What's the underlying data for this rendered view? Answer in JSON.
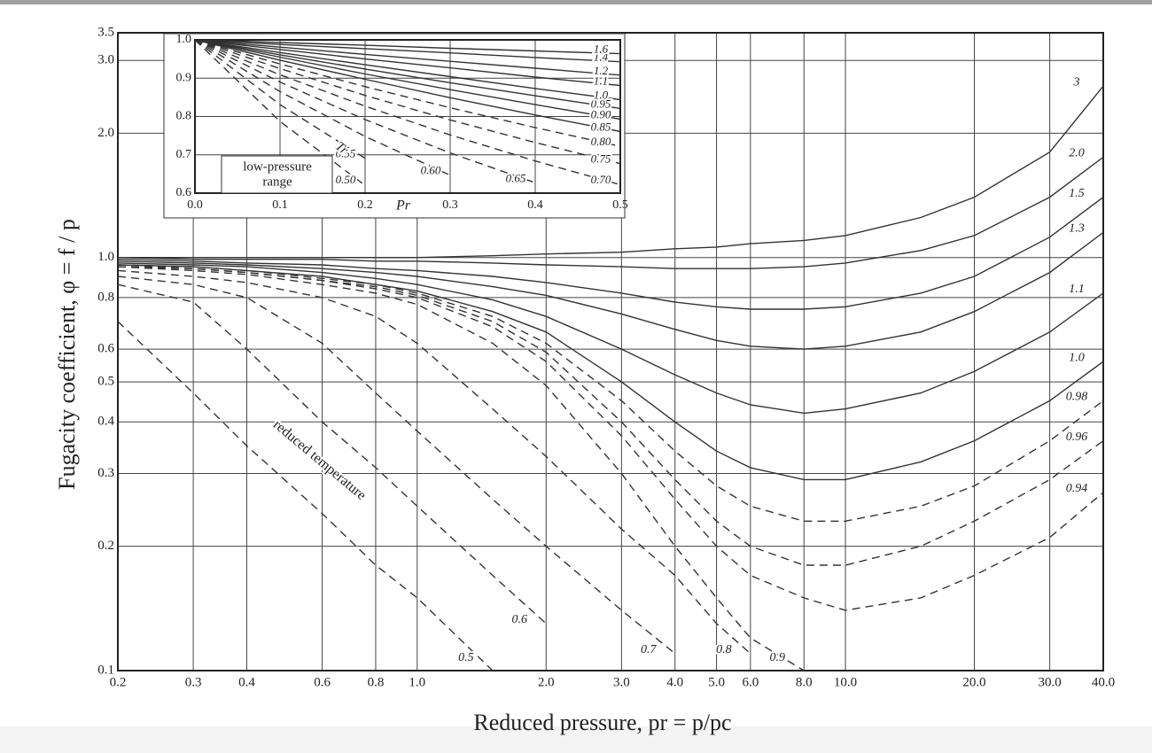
{
  "chart_data": [
    {
      "type": "line",
      "y_label": "Fugacity coefficient, φ = f / p",
      "x_label": "Reduced pressure, pr = p/pc",
      "annotation": "reduced temperature",
      "xscale": "log",
      "yscale": "log",
      "grid": true,
      "xlim": [
        0.2,
        40
      ],
      "ylim": [
        0.1,
        3.5
      ],
      "xticks": [
        0.2,
        0.3,
        0.4,
        0.6,
        0.8,
        {
          "value": 1,
          "label": "1.0"
        },
        {
          "value": 2,
          "label": "2.0"
        },
        {
          "value": 3,
          "label": "3.0"
        },
        {
          "value": 4,
          "label": "4.0"
        },
        {
          "value": 5,
          "label": "5.0"
        },
        {
          "value": 6,
          "label": "6.0"
        },
        {
          "value": 8,
          "label": "8.0"
        },
        {
          "value": 10,
          "label": "10.0"
        },
        {
          "value": 20,
          "label": "20.0"
        },
        {
          "value": 30,
          "label": "30.0"
        },
        {
          "value": 40,
          "label": "40.0"
        }
      ],
      "yticks": [
        0.1,
        0.2,
        0.3,
        0.4,
        0.5,
        0.6,
        0.8,
        {
          "value": 1,
          "label": "1.0"
        },
        {
          "value": 2,
          "label": "2.0"
        },
        {
          "value": 3,
          "label": "3.0"
        },
        3.5
      ],
      "x": [
        0.2,
        0.3,
        0.4,
        0.6,
        0.8,
        1,
        1.5,
        2,
        3,
        4,
        5,
        6,
        8,
        10,
        15,
        20,
        30,
        40
      ],
      "series": [
        {
          "name": "3",
          "color": "#333333",
          "line_style": "solid",
          "values": [
            1.0,
            1.0,
            1.0,
            1.0,
            1.0,
            1.0,
            1.01,
            1.02,
            1.03,
            1.05,
            1.06,
            1.08,
            1.1,
            1.13,
            1.25,
            1.4,
            1.8,
            2.6
          ]
        },
        {
          "name": "2.0",
          "color": "#333333",
          "line_style": "solid",
          "values": [
            1.0,
            0.99,
            0.99,
            0.99,
            0.98,
            0.98,
            0.97,
            0.96,
            0.95,
            0.94,
            0.94,
            0.94,
            0.95,
            0.97,
            1.04,
            1.13,
            1.4,
            1.75
          ]
        },
        {
          "name": "1.5",
          "color": "#333333",
          "line_style": "solid",
          "values": [
            0.99,
            0.98,
            0.97,
            0.96,
            0.94,
            0.93,
            0.9,
            0.87,
            0.82,
            0.78,
            0.76,
            0.75,
            0.75,
            0.76,
            0.82,
            0.9,
            1.12,
            1.4
          ]
        },
        {
          "name": "1.3",
          "color": "#333333",
          "line_style": "solid",
          "values": [
            0.98,
            0.97,
            0.96,
            0.94,
            0.92,
            0.9,
            0.85,
            0.81,
            0.73,
            0.67,
            0.63,
            0.61,
            0.6,
            0.61,
            0.66,
            0.74,
            0.92,
            1.15
          ]
        },
        {
          "name": "1.1",
          "color": "#333333",
          "line_style": "solid",
          "values": [
            0.97,
            0.96,
            0.95,
            0.92,
            0.89,
            0.86,
            0.79,
            0.72,
            0.6,
            0.52,
            0.47,
            0.44,
            0.42,
            0.43,
            0.47,
            0.53,
            0.66,
            0.82
          ]
        },
        {
          "name": "1.0",
          "color": "#333333",
          "line_style": "solid",
          "values": [
            0.96,
            0.95,
            0.93,
            0.9,
            0.86,
            0.83,
            0.74,
            0.66,
            0.5,
            0.4,
            0.34,
            0.31,
            0.29,
            0.29,
            0.32,
            0.36,
            0.45,
            0.56
          ]
        },
        {
          "name": "0.98",
          "color": "#333333",
          "line_style": "dashed",
          "values": [
            0.96,
            0.95,
            0.93,
            0.89,
            0.86,
            0.82,
            0.72,
            0.62,
            0.45,
            0.34,
            0.28,
            0.25,
            0.23,
            0.23,
            0.25,
            0.28,
            0.36,
            0.45
          ]
        },
        {
          "name": "0.96",
          "color": "#333333",
          "line_style": "dashed",
          "values": [
            0.96,
            0.94,
            0.92,
            0.88,
            0.85,
            0.81,
            0.7,
            0.59,
            0.4,
            0.29,
            0.23,
            0.2,
            0.18,
            0.18,
            0.2,
            0.23,
            0.29,
            0.36
          ]
        },
        {
          "name": "0.94",
          "color": "#333333",
          "line_style": "dashed",
          "values": [
            0.95,
            0.94,
            0.92,
            0.88,
            0.84,
            0.8,
            0.68,
            0.56,
            0.37,
            0.26,
            0.2,
            0.17,
            0.15,
            0.14,
            0.15,
            0.17,
            0.21,
            0.27
          ]
        },
        {
          "name": "0.9",
          "color": "#333333",
          "line_style": "dashed",
          "values": [
            0.95,
            0.93,
            0.91,
            0.86,
            0.82,
            0.77,
            0.62,
            0.49,
            0.3,
            0.2,
            0.15,
            0.12,
            0.1,
            null,
            null,
            null,
            null,
            null
          ]
        },
        {
          "name": "0.8",
          "color": "#333333",
          "line_style": "dashed",
          "values": [
            0.93,
            0.9,
            0.87,
            0.8,
            0.72,
            0.62,
            0.43,
            0.33,
            0.22,
            0.17,
            0.13,
            0.11,
            null,
            null,
            null,
            null,
            null,
            null
          ]
        },
        {
          "name": "0.7",
          "color": "#333333",
          "line_style": "dashed",
          "values": [
            0.9,
            0.86,
            0.8,
            0.62,
            0.47,
            0.38,
            0.26,
            0.2,
            0.14,
            0.11,
            null,
            null,
            null,
            null,
            null,
            null,
            null,
            null
          ]
        },
        {
          "name": "0.6",
          "color": "#333333",
          "line_style": "dashed",
          "values": [
            0.86,
            0.78,
            0.6,
            0.4,
            0.31,
            0.25,
            0.17,
            0.13,
            null,
            null,
            null,
            null,
            null,
            null,
            null,
            null,
            null,
            null
          ]
        },
        {
          "name": "0.5",
          "color": "#333333",
          "line_style": "dashed",
          "values": [
            0.7,
            0.47,
            0.35,
            0.24,
            0.18,
            0.15,
            0.1,
            null,
            null,
            null,
            null,
            null,
            null,
            null,
            null,
            null,
            null,
            null
          ]
        }
      ]
    },
    {
      "type": "line",
      "x_label": "Pr",
      "annotation": [
        "low-pressure",
        "range"
      ],
      "temperature_label": "Tr",
      "xscale": "linear",
      "yscale": "linear",
      "grid": true,
      "xlim": [
        0,
        0.5
      ],
      "ylim": [
        0.6,
        1.0
      ],
      "xticks": [
        {
          "value": 0,
          "label": "0.0"
        },
        0.1,
        0.2,
        0.3,
        0.4,
        0.5
      ],
      "yticks": [
        0.6,
        0.7,
        0.8,
        0.9,
        {
          "value": 1,
          "label": "1.0"
        }
      ],
      "x": [
        0,
        0.1,
        0.2,
        0.3,
        0.4,
        0.5
      ],
      "series": [
        {
          "name": "0.50",
          "color": "#333333",
          "line_style": "dashed",
          "values": [
            1.0,
            0.787,
            0.62,
            null,
            null,
            null
          ]
        },
        {
          "name": "0.55",
          "color": "#333333",
          "line_style": "dashed",
          "values": [
            1.0,
            0.831,
            0.691,
            null,
            null,
            null
          ]
        },
        {
          "name": "0.60",
          "color": "#333333",
          "line_style": "dashed",
          "values": [
            1.0,
            0.865,
            0.748,
            0.647,
            null,
            null
          ]
        },
        {
          "name": "0.65",
          "color": "#333333",
          "line_style": "dashed",
          "values": [
            1.0,
            0.89,
            0.792,
            0.705,
            0.627,
            null
          ]
        },
        {
          "name": "0.70",
          "color": "#333333",
          "line_style": "dashed",
          "values": [
            1.0,
            0.909,
            0.827,
            0.752,
            0.684,
            0.622
          ]
        },
        {
          "name": "0.75",
          "color": "#333333",
          "line_style": "dashed",
          "values": [
            1.0,
            0.925,
            0.855,
            0.791,
            0.732,
            0.677
          ]
        },
        {
          "name": "0.80",
          "color": "#333333",
          "line_style": "dashed",
          "values": [
            1.0,
            0.937,
            0.878,
            0.823,
            0.771,
            0.722
          ]
        },
        {
          "name": "0.85",
          "color": "#333333",
          "line_style": "solid",
          "values": [
            1.0,
            0.947,
            0.897,
            0.849,
            0.804,
            0.761
          ]
        },
        {
          "name": "0.90",
          "color": "#333333",
          "line_style": "solid",
          "values": [
            1.0,
            0.955,
            0.911,
            0.87,
            0.831,
            0.793
          ]
        },
        {
          "name": "0.95",
          "color": "#333333",
          "line_style": "solid",
          "values": [
            1.0,
            0.961,
            0.924,
            0.888,
            0.854,
            0.821
          ]
        },
        {
          "name": "1.0",
          "color": "#333333",
          "line_style": "solid",
          "values": [
            1.0,
            0.967,
            0.935,
            0.904,
            0.873,
            0.844
          ]
        },
        {
          "name": "1.1",
          "color": "#333333",
          "line_style": "solid",
          "values": [
            1.0,
            0.975,
            0.95,
            0.927,
            0.903,
            0.881
          ]
        },
        {
          "name": "1.2",
          "color": "#333333",
          "line_style": "solid",
          "values": [
            1.0,
            0.981,
            0.962,
            0.944,
            0.926,
            0.908
          ]
        },
        {
          "name": "1.4",
          "color": "#333333",
          "line_style": "solid",
          "values": [
            1.0,
            0.988,
            0.977,
            0.966,
            0.954,
            0.943
          ]
        },
        {
          "name": "1.6",
          "color": "#333333",
          "line_style": "solid",
          "values": [
            1.0,
            0.993,
            0.986,
            0.978,
            0.971,
            0.964
          ]
        }
      ]
    }
  ]
}
